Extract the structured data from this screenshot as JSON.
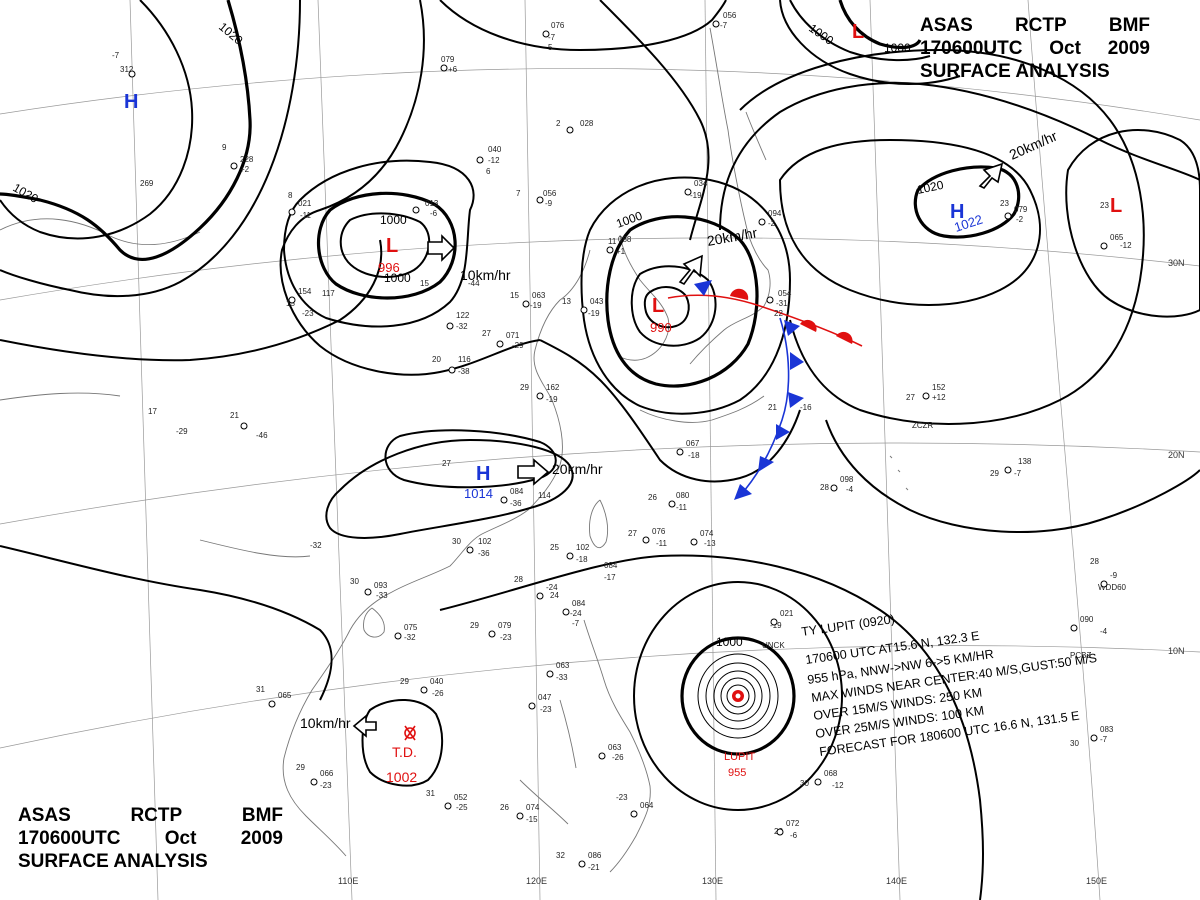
{
  "title_top": {
    "line1": [
      "ASAS",
      "RCTP",
      "BMF"
    ],
    "line2": [
      "170600UTC",
      "Oct",
      "2009"
    ],
    "line3": "SURFACE ANALYSIS"
  },
  "title_bottom": {
    "line1": [
      "ASAS",
      "RCTP",
      "BMF"
    ],
    "line2": [
      "170600UTC",
      "Oct",
      "2009"
    ],
    "line3": "SURFACE ANALYSIS"
  },
  "colors": {
    "high": "#1a35d6",
    "low": "#e01010",
    "cold_front": "#1a35d6",
    "warm_front": "#e01010",
    "isobar": "#000000",
    "coast": "#777777"
  },
  "longitude_labels": [
    "110E",
    "120E",
    "130E",
    "140E",
    "150E"
  ],
  "latitude_labels": [
    "30N",
    "20N",
    "10N"
  ],
  "pressure_centers": [
    {
      "type": "H",
      "label": "",
      "lat": 47,
      "lon": 103
    },
    {
      "type": "L",
      "label": "996",
      "lat": 37,
      "lon": 115
    },
    {
      "type": "L",
      "label": "990",
      "lat": 34.5,
      "lon": 128.5
    },
    {
      "type": "L",
      "label": "",
      "lat": 46,
      "lon": 146
    },
    {
      "type": "H",
      "label": "1022",
      "lat": 35,
      "lon": 141
    },
    {
      "type": "L",
      "label": "",
      "lat": 33,
      "lon": 150
    },
    {
      "type": "H",
      "label": "1014",
      "lat": 22,
      "lon": 116
    },
    {
      "type": "TD",
      "label": "T.D.",
      "value": "1002",
      "lat": 12.5,
      "lon": 112
    },
    {
      "type": "TY",
      "label": "LUPIT",
      "value": "955",
      "lat": 15.6,
      "lon": 132.3
    }
  ],
  "isobar_labels": [
    "1020",
    "1020",
    "1000",
    "1000",
    "1000",
    "1000",
    "1020",
    "1000",
    "1000"
  ],
  "movement_vectors": [
    {
      "text": "10km/hr",
      "near": "L 996"
    },
    {
      "text": "20km/hr",
      "near": "H 1014"
    },
    {
      "text": "20km/hr",
      "near": "L 990"
    },
    {
      "text": "20km/hr",
      "near": "H 1022"
    },
    {
      "text": "10km/hr",
      "near": "T.D."
    }
  ],
  "typhoon_info": [
    "TY  LUPIT  (0920)",
    "170600 UTC  AT15.6 N, 132.3 E",
    "955 hPa, NNW->NW  6->5 KM/HR",
    "MAX WINDS NEAR CENTER:40 M/S,GUST:50 M/S",
    "OVER 15M/S WINDS: 250 KM",
    "OVER 25M/S WINDS: 100 KM",
    "FORECAST FOR 180600 UTC 16.6 N, 131.5 E"
  ],
  "stations": [
    [
      "312",
      120,
      72
    ],
    [
      "-7",
      112,
      58
    ],
    [
      "228",
      240,
      162
    ],
    [
      "+2",
      240,
      172
    ],
    [
      "269",
      140,
      186
    ],
    [
      "9",
      222,
      150
    ],
    [
      "013",
      425,
      206
    ],
    [
      "-6",
      430,
      216
    ],
    [
      "040",
      488,
      152
    ],
    [
      "-12",
      488,
      163
    ],
    [
      "6",
      486,
      174
    ],
    [
      "056",
      543,
      196
    ],
    [
      "-9",
      545,
      206
    ],
    [
      "7",
      516,
      196
    ],
    [
      "028",
      580,
      126
    ],
    [
      "2",
      556,
      126
    ],
    [
      "076",
      551,
      28
    ],
    [
      "-7",
      548,
      40
    ],
    [
      "5",
      548,
      50
    ],
    [
      "079",
      441,
      62
    ],
    [
      "+6",
      448,
      72
    ],
    [
      "056",
      723,
      18
    ],
    [
      "-7",
      720,
      28
    ],
    [
      "034",
      694,
      186
    ],
    [
      "-19",
      690,
      198
    ],
    [
      "094",
      768,
      216
    ],
    [
      "-2",
      768,
      226
    ],
    [
      "088",
      618,
      242
    ],
    [
      "+1",
      616,
      254
    ],
    [
      "11",
      608,
      244
    ],
    [
      "063",
      532,
      298
    ],
    [
      "-19",
      530,
      308
    ],
    [
      "15",
      510,
      298
    ],
    [
      "043",
      590,
      304
    ],
    [
      "-19",
      588,
      316
    ],
    [
      "13",
      562,
      304
    ],
    [
      "122",
      456,
      318
    ],
    [
      "-32",
      456,
      329
    ],
    [
      "071",
      506,
      338
    ],
    [
      "-29",
      512,
      348
    ],
    [
      "27",
      482,
      336
    ],
    [
      "116",
      458,
      362
    ],
    [
      "-38",
      458,
      374
    ],
    [
      "20",
      432,
      362
    ],
    [
      "162",
      546,
      390
    ],
    [
      "-19",
      546,
      402
    ],
    [
      "29",
      520,
      390
    ],
    [
      "21",
      230,
      418
    ],
    [
      "-46",
      256,
      438
    ],
    [
      "-29",
      176,
      434
    ],
    [
      "17",
      148,
      414
    ],
    [
      "-44",
      468,
      286
    ],
    [
      "15",
      420,
      286
    ],
    [
      "117",
      322,
      296
    ],
    [
      "-23",
      302,
      316
    ],
    [
      "080",
      676,
      498
    ],
    [
      "-11",
      676,
      510
    ],
    [
      "26",
      648,
      500
    ],
    [
      "074",
      700,
      536
    ],
    [
      "-13",
      704,
      546
    ],
    [
      "076",
      652,
      534
    ],
    [
      "-11",
      656,
      546
    ],
    [
      "27",
      628,
      536
    ],
    [
      "102",
      576,
      550
    ],
    [
      "-18",
      576,
      562
    ],
    [
      "25",
      550,
      550
    ],
    [
      "084",
      604,
      568
    ],
    [
      "-17",
      604,
      580
    ],
    [
      "102",
      478,
      544
    ],
    [
      "-36",
      478,
      556
    ],
    [
      "30",
      452,
      544
    ],
    [
      "093",
      374,
      588
    ],
    [
      "-33",
      376,
      598
    ],
    [
      "30",
      350,
      584
    ],
    [
      "-32",
      310,
      548
    ],
    [
      "098",
      840,
      482
    ],
    [
      "-4",
      846,
      492
    ],
    [
      "28",
      820,
      490
    ],
    [
      "138",
      1018,
      464
    ],
    [
      "-7",
      1014,
      476
    ],
    [
      "29",
      990,
      476
    ],
    [
      "152",
      932,
      390
    ],
    [
      "+12",
      932,
      400
    ],
    [
      "27",
      906,
      400
    ],
    [
      "ZCZR",
      912,
      428
    ],
    [
      "079",
      1014,
      212
    ],
    [
      "-2",
      1016,
      222
    ],
    [
      "23",
      1000,
      206
    ],
    [
      "065",
      1110,
      240
    ],
    [
      "-12",
      1120,
      248
    ],
    [
      "23",
      1100,
      208
    ],
    [
      "-9",
      1110,
      578
    ],
    [
      "28",
      1090,
      564
    ],
    [
      "WDD60",
      1098,
      590
    ],
    [
      "090",
      1080,
      622
    ],
    [
      "-4",
      1100,
      634
    ],
    [
      "PCBZ",
      1070,
      658
    ],
    [
      "083",
      1100,
      732
    ],
    [
      "-7",
      1100,
      742
    ],
    [
      "30",
      1070,
      746
    ],
    [
      "021",
      780,
      616
    ],
    [
      "-19",
      770,
      628
    ],
    [
      "UNCK",
      762,
      648
    ],
    [
      "068",
      824,
      776
    ],
    [
      "-12",
      832,
      788
    ],
    [
      "30",
      800,
      786
    ],
    [
      "072",
      786,
      826
    ],
    [
      "-6",
      790,
      838
    ],
    [
      "28",
      774,
      834
    ],
    [
      "063",
      608,
      750
    ],
    [
      "-26",
      612,
      760
    ],
    [
      "047",
      538,
      700
    ],
    [
      "-23",
      540,
      712
    ],
    [
      "063",
      556,
      668
    ],
    [
      "-33",
      556,
      680
    ],
    [
      "079",
      498,
      628
    ],
    [
      "-23",
      500,
      640
    ],
    [
      "29",
      470,
      628
    ],
    [
      "075",
      404,
      630
    ],
    [
      "-32",
      404,
      640
    ],
    [
      "065",
      278,
      698
    ],
    [
      "31",
      256,
      692
    ],
    [
      "040",
      430,
      684
    ],
    [
      "-26",
      432,
      696
    ],
    [
      "29",
      400,
      684
    ],
    [
      "066",
      320,
      776
    ],
    [
      "-23",
      320,
      788
    ],
    [
      "29",
      296,
      770
    ],
    [
      "052",
      454,
      800
    ],
    [
      "-25",
      456,
      810
    ],
    [
      "31",
      426,
      796
    ],
    [
      "074",
      526,
      810
    ],
    [
      "-15",
      526,
      822
    ],
    [
      "26",
      500,
      810
    ],
    [
      "086",
      588,
      858
    ],
    [
      "-21",
      588,
      870
    ],
    [
      "32",
      556,
      858
    ],
    [
      "064",
      640,
      808
    ],
    [
      "-23",
      616,
      800
    ],
    [
      "084",
      510,
      494
    ],
    [
      "-36",
      510,
      506
    ],
    [
      "114",
      538,
      498
    ],
    [
      "27",
      442,
      466
    ],
    [
      "-24",
      546,
      590
    ],
    [
      "28",
      514,
      582
    ],
    [
      "084",
      572,
      606
    ],
    [
      "-24",
      570,
      616
    ],
    [
      "24",
      550,
      598
    ],
    [
      "-7",
      572,
      626
    ],
    [
      "021",
      298,
      206
    ],
    [
      "-11",
      300,
      218
    ],
    [
      "8",
      288,
      198
    ],
    [
      "15",
      286,
      306
    ],
    [
      "154",
      298,
      294
    ],
    [
      "067",
      686,
      446
    ],
    [
      "-18",
      688,
      458
    ],
    [
      "22",
      774,
      316
    ],
    [
      "-31",
      776,
      306
    ],
    [
      "054",
      778,
      296
    ],
    [
      "-16",
      800,
      410
    ],
    [
      "21",
      768,
      410
    ]
  ]
}
